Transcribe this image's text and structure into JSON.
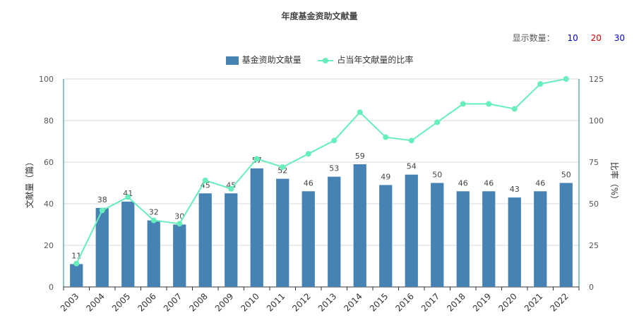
{
  "chart_data": {
    "type": "bar",
    "title": "年度基金资助文献量",
    "categories": [
      "2003",
      "2004",
      "2005",
      "2006",
      "2007",
      "2008",
      "2009",
      "2010",
      "2011",
      "2012",
      "2013",
      "2014",
      "2015",
      "2016",
      "2017",
      "2018",
      "2019",
      "2020",
      "2021",
      "2022"
    ],
    "series": [
      {
        "name": "基金资助文献量",
        "type": "bar",
        "axis": "left",
        "values": [
          11,
          38,
          41,
          32,
          30,
          45,
          45,
          57,
          52,
          46,
          53,
          59,
          49,
          54,
          50,
          46,
          46,
          43,
          46,
          50
        ]
      },
      {
        "name": "占当年文献量的比率",
        "type": "line",
        "axis": "right",
        "values": [
          14,
          46,
          54,
          40,
          38,
          64,
          59,
          77,
          72,
          80,
          88,
          105,
          90,
          88,
          99,
          110,
          110,
          107,
          122,
          125
        ]
      }
    ],
    "ylabel": "文献量（篇）",
    "ylim": [
      0,
      100
    ],
    "yticks": [
      0,
      20,
      40,
      60,
      80,
      100
    ],
    "y2label": "比率（%）",
    "y2lim": [
      0,
      125
    ],
    "y2ticks": [
      0,
      25,
      50,
      75,
      100,
      125
    ],
    "grid": true,
    "legend": "top-center"
  },
  "display_count": {
    "label": "显示数量：",
    "options": [
      "10",
      "20",
      "30"
    ]
  },
  "colors": {
    "bar": "#4682b4",
    "line": "#66eebb",
    "axis": "#1a8a7a",
    "grid": "#d8d8d8",
    "opt10": "#0000cc",
    "opt20": "#dd0000",
    "opt30": "#0000cc"
  }
}
